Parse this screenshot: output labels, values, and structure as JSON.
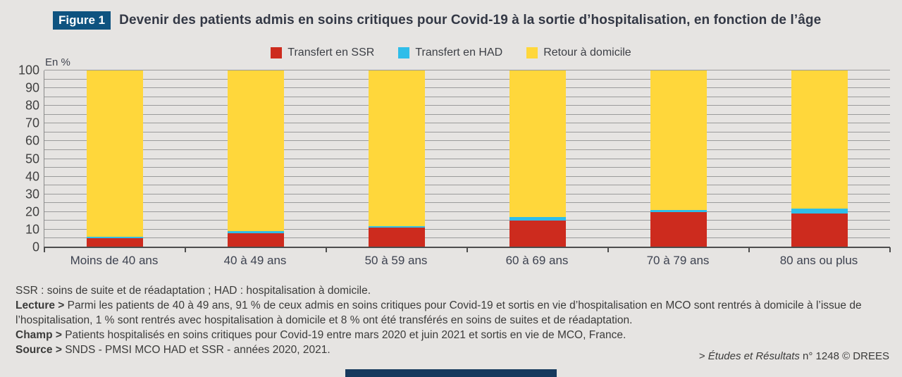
{
  "figure": {
    "badge": "Figure 1",
    "title": "Devenir des patients admis en soins critiques pour Covid-19 à la sortie d’hospitalisation, en fonction de l’âge"
  },
  "chart_data": {
    "type": "bar",
    "stacked": true,
    "unit_label": "En %",
    "categories": [
      "Moins de 40 ans",
      "40 à 49 ans",
      "50 à 59 ans",
      "60 à 69 ans",
      "70 à 79 ans",
      "80 ans ou plus"
    ],
    "series": [
      {
        "name": "Transfert en SSR",
        "color": "#cd2b1e",
        "values": [
          5,
          8,
          11,
          15,
          20,
          19
        ]
      },
      {
        "name": "Transfert en HAD",
        "color": "#2fbde9",
        "values": [
          1,
          1,
          1,
          2,
          1,
          3
        ]
      },
      {
        "name": "Retour à domicile",
        "color": "#ffd73b",
        "values": [
          94,
          91,
          88,
          83,
          79,
          78
        ]
      }
    ],
    "ylim": [
      0,
      100
    ],
    "y_major_ticks": [
      0,
      10,
      20,
      30,
      40,
      50,
      60,
      70,
      80,
      90,
      100
    ],
    "grid_interval": 5,
    "legend_position": "top",
    "grid": true
  },
  "notes": {
    "lines": [
      {
        "bold": "",
        "text": "SSR : soins de suite et de réadaptation ; HAD : hospitalisation à domicile."
      },
      {
        "bold": "Lecture >",
        "text": " Parmi les patients de 40 à 49 ans, 91 % de ceux admis en soins critiques pour Covid-19 et sortis en vie d’hospitalisation en MCO sont rentrés à domicile à l’issue de l’hospitalisation, 1 % sont rentrés avec hospitalisation à domicile et 8 % ont été transférés en soins de suites et de réadaptation."
      },
      {
        "bold": "Champ >",
        "text": " Patients hospitalisés en soins critiques pour Covid-19 entre mars 2020 et juin 2021 et sortis en vie de MCO, France."
      },
      {
        "bold": "Source >",
        "text": " SNDS - PMSI MCO HAD et SSR - années 2020, 2021."
      }
    ]
  },
  "credit": {
    "prefix": "> ",
    "italic": "Études et Résultats",
    "rest": " n° 1248 © DREES"
  },
  "colors": {
    "background": "#e6e4e2",
    "badge": "#0e5380",
    "title_text": "#333845",
    "ssr_red": "#cd2b1e",
    "had_cyan": "#2fbde9",
    "domicile_yellow": "#ffd73b",
    "bottom_bar": "#16395d"
  }
}
